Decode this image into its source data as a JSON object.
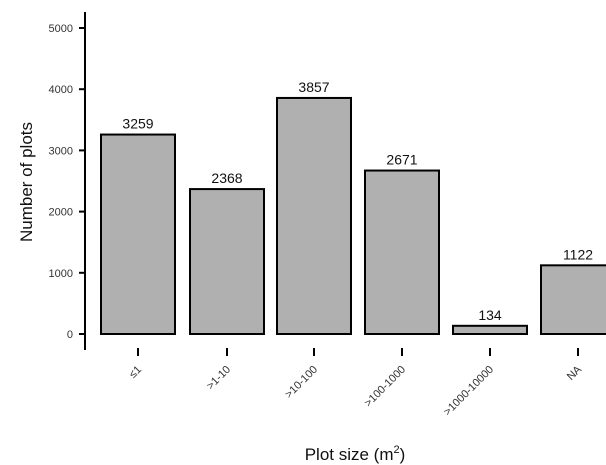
{
  "chart_data": {
    "type": "bar",
    "categories": [
      "≤1",
      ">1-10",
      ">10-100",
      ">100-1000",
      ">1000-10000",
      "NA"
    ],
    "values": [
      3259,
      2368,
      3857,
      2671,
      134,
      1122
    ],
    "data_labels": [
      "3259",
      "2368",
      "3857",
      "2671",
      "134",
      "1122"
    ],
    "ylabel": "Number of plots",
    "xlabel_main": "Plot size (m",
    "xlabel_sup": "2",
    "xlabel_end": ")",
    "ylim": [
      0,
      5200
    ],
    "yticks": [
      0,
      1000,
      2000,
      3000,
      4000,
      5000
    ],
    "ytick_labels": [
      "0",
      "1000",
      "2000",
      "3000",
      "4000",
      "5000"
    ],
    "grid": false,
    "bar_color": "#b0b0b0",
    "edge_color": "#000000"
  }
}
